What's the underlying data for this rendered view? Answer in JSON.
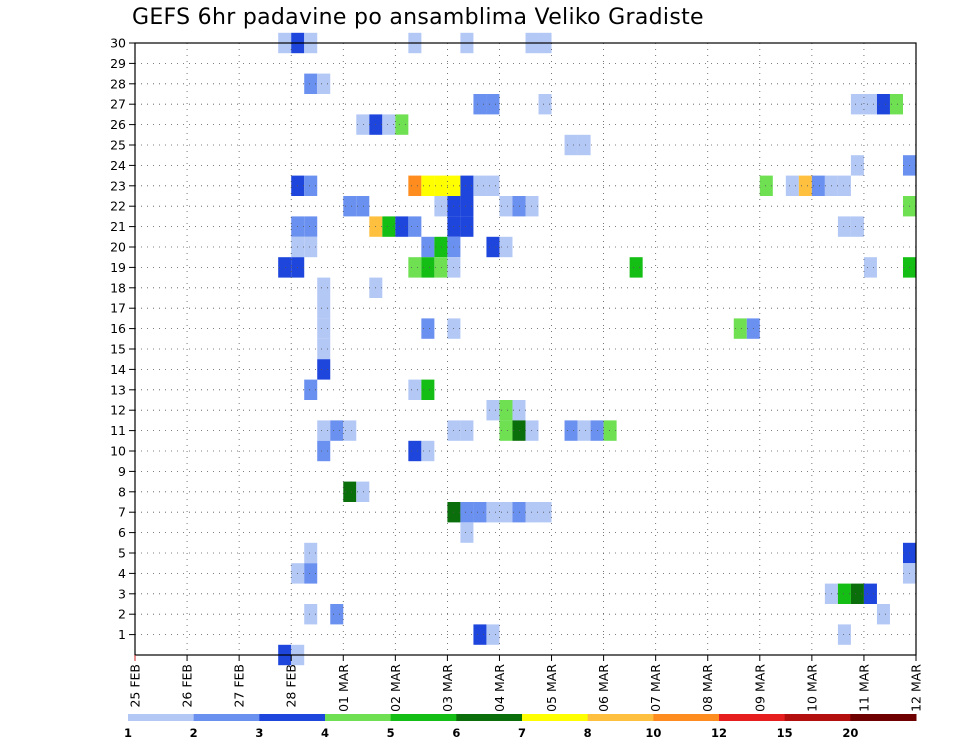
{
  "chart_data": {
    "type": "heatmap",
    "title": "GEFS 6hr padavine po ansamblima Veliko Gradiste",
    "x_tick_labels": [
      "25 FEB",
      "26 FEB",
      "27 FEB",
      "28 FEB",
      "01 MAR",
      "02 MAR",
      "03 MAR",
      "04 MAR",
      "05 MAR",
      "06 MAR",
      "07 MAR",
      "08 MAR",
      "09 MAR",
      "10 MAR",
      "11 MAR",
      "12 MAR"
    ],
    "x_range_days": [
      0,
      15
    ],
    "y_range_members": [
      0,
      30
    ],
    "y_tick_labels": [
      "1",
      "2",
      "3",
      "4",
      "5",
      "6",
      "7",
      "8",
      "9",
      "10",
      "11",
      "12",
      "13",
      "14",
      "15",
      "16",
      "17",
      "18",
      "19",
      "20",
      "21",
      "22",
      "23",
      "24",
      "25",
      "26",
      "27",
      "28",
      "29",
      "30"
    ],
    "grid": "dotted",
    "legend": {
      "placement": "bottom",
      "labels": [
        "1",
        "2",
        "3",
        "4",
        "5",
        "6",
        "7",
        "8",
        "10",
        "12",
        "15",
        "20"
      ],
      "colors": [
        "#b4c8f6",
        "#6a90f0",
        "#1e46dc",
        "#6ee052",
        "#14be14",
        "#0a6e0a",
        "#ffff00",
        "#ffc040",
        "#ff8c1e",
        "#e61e1e",
        "#b40f0f",
        "#6e0000"
      ]
    },
    "cells": [
      {
        "d": 2.75,
        "m": 30,
        "v": 1
      },
      {
        "d": 3.0,
        "m": 30,
        "v": 3
      },
      {
        "d": 3.25,
        "m": 30,
        "v": 1
      },
      {
        "d": 5.25,
        "m": 30,
        "v": 1
      },
      {
        "d": 6.25,
        "m": 30,
        "v": 1
      },
      {
        "d": 7.5,
        "m": 30,
        "v": 1
      },
      {
        "d": 7.75,
        "m": 30,
        "v": 1
      },
      {
        "d": 3.25,
        "m": 28,
        "v": 2
      },
      {
        "d": 3.5,
        "m": 28,
        "v": 1
      },
      {
        "d": 6.5,
        "m": 27,
        "v": 2
      },
      {
        "d": 6.75,
        "m": 27,
        "v": 2
      },
      {
        "d": 7.75,
        "m": 27,
        "v": 1
      },
      {
        "d": 13.75,
        "m": 27,
        "v": 1
      },
      {
        "d": 14.0,
        "m": 27,
        "v": 1
      },
      {
        "d": 14.25,
        "m": 27,
        "v": 3
      },
      {
        "d": 14.5,
        "m": 27,
        "v": 4
      },
      {
        "d": 4.25,
        "m": 26,
        "v": 1
      },
      {
        "d": 4.5,
        "m": 26,
        "v": 3
      },
      {
        "d": 4.75,
        "m": 26,
        "v": 1
      },
      {
        "d": 5.0,
        "m": 26,
        "v": 4
      },
      {
        "d": 8.25,
        "m": 25,
        "v": 1
      },
      {
        "d": 8.5,
        "m": 25,
        "v": 1
      },
      {
        "d": 13.75,
        "m": 24,
        "v": 1
      },
      {
        "d": 14.75,
        "m": 24,
        "v": 2
      },
      {
        "d": 3.0,
        "m": 23,
        "v": 3
      },
      {
        "d": 3.25,
        "m": 23,
        "v": 2
      },
      {
        "d": 5.25,
        "m": 23,
        "v": 9
      },
      {
        "d": 5.5,
        "m": 23,
        "v": 7
      },
      {
        "d": 5.75,
        "m": 23,
        "v": 7
      },
      {
        "d": 6.0,
        "m": 23,
        "v": 7
      },
      {
        "d": 6.25,
        "m": 23,
        "v": 3
      },
      {
        "d": 6.5,
        "m": 23,
        "v": 1
      },
      {
        "d": 6.75,
        "m": 23,
        "v": 1
      },
      {
        "d": 12.0,
        "m": 23,
        "v": 4
      },
      {
        "d": 12.5,
        "m": 23,
        "v": 1
      },
      {
        "d": 12.75,
        "m": 23,
        "v": 8
      },
      {
        "d": 13.0,
        "m": 23,
        "v": 2
      },
      {
        "d": 13.25,
        "m": 23,
        "v": 1
      },
      {
        "d": 13.5,
        "m": 23,
        "v": 1
      },
      {
        "d": 4.0,
        "m": 22,
        "v": 2
      },
      {
        "d": 4.25,
        "m": 22,
        "v": 2
      },
      {
        "d": 5.75,
        "m": 22,
        "v": 1
      },
      {
        "d": 6.0,
        "m": 22,
        "v": 3
      },
      {
        "d": 6.25,
        "m": 22,
        "v": 3
      },
      {
        "d": 7.0,
        "m": 22,
        "v": 1
      },
      {
        "d": 7.25,
        "m": 22,
        "v": 2
      },
      {
        "d": 7.5,
        "m": 22,
        "v": 1
      },
      {
        "d": 14.75,
        "m": 22,
        "v": 4
      },
      {
        "d": 3.0,
        "m": 21,
        "v": 2
      },
      {
        "d": 3.25,
        "m": 21,
        "v": 2
      },
      {
        "d": 4.5,
        "m": 21,
        "v": 8
      },
      {
        "d": 4.75,
        "m": 21,
        "v": 5
      },
      {
        "d": 5.0,
        "m": 21,
        "v": 3
      },
      {
        "d": 5.25,
        "m": 21,
        "v": 2
      },
      {
        "d": 6.0,
        "m": 21,
        "v": 3
      },
      {
        "d": 6.25,
        "m": 21,
        "v": 3
      },
      {
        "d": 13.5,
        "m": 21,
        "v": 1
      },
      {
        "d": 13.75,
        "m": 21,
        "v": 1
      },
      {
        "d": 3.0,
        "m": 20,
        "v": 1
      },
      {
        "d": 3.25,
        "m": 20,
        "v": 1
      },
      {
        "d": 5.5,
        "m": 20,
        "v": 2
      },
      {
        "d": 5.75,
        "m": 20,
        "v": 5
      },
      {
        "d": 6.0,
        "m": 20,
        "v": 2
      },
      {
        "d": 6.75,
        "m": 20,
        "v": 3
      },
      {
        "d": 7.0,
        "m": 20,
        "v": 1
      },
      {
        "d": 2.75,
        "m": 19,
        "v": 3
      },
      {
        "d": 3.0,
        "m": 19,
        "v": 3
      },
      {
        "d": 5.25,
        "m": 19,
        "v": 4
      },
      {
        "d": 5.5,
        "m": 19,
        "v": 5
      },
      {
        "d": 5.75,
        "m": 19,
        "v": 4
      },
      {
        "d": 6.0,
        "m": 19,
        "v": 1
      },
      {
        "d": 9.5,
        "m": 19,
        "v": 5
      },
      {
        "d": 14.0,
        "m": 19,
        "v": 1
      },
      {
        "d": 14.75,
        "m": 19,
        "v": 5
      },
      {
        "d": 3.5,
        "m": 18,
        "v": 1
      },
      {
        "d": 4.5,
        "m": 18,
        "v": 1
      },
      {
        "d": 3.5,
        "m": 17,
        "v": 1
      },
      {
        "d": 3.5,
        "m": 16,
        "v": 1
      },
      {
        "d": 5.5,
        "m": 16,
        "v": 2
      },
      {
        "d": 6.0,
        "m": 16,
        "v": 1
      },
      {
        "d": 11.5,
        "m": 16,
        "v": 4
      },
      {
        "d": 11.75,
        "m": 16,
        "v": 2
      },
      {
        "d": 3.5,
        "m": 15,
        "v": 1
      },
      {
        "d": 3.5,
        "m": 14,
        "v": 3
      },
      {
        "d": 3.25,
        "m": 13,
        "v": 2
      },
      {
        "d": 5.25,
        "m": 13,
        "v": 1
      },
      {
        "d": 5.5,
        "m": 13,
        "v": 5
      },
      {
        "d": 6.75,
        "m": 12,
        "v": 1
      },
      {
        "d": 7.0,
        "m": 12,
        "v": 4
      },
      {
        "d": 7.25,
        "m": 12,
        "v": 1
      },
      {
        "d": 3.5,
        "m": 11,
        "v": 1
      },
      {
        "d": 3.75,
        "m": 11,
        "v": 2
      },
      {
        "d": 4.0,
        "m": 11,
        "v": 1
      },
      {
        "d": 6.0,
        "m": 11,
        "v": 1
      },
      {
        "d": 6.25,
        "m": 11,
        "v": 1
      },
      {
        "d": 7.0,
        "m": 11,
        "v": 4
      },
      {
        "d": 7.25,
        "m": 11,
        "v": 6
      },
      {
        "d": 7.5,
        "m": 11,
        "v": 1
      },
      {
        "d": 8.25,
        "m": 11,
        "v": 2
      },
      {
        "d": 8.5,
        "m": 11,
        "v": 1
      },
      {
        "d": 8.75,
        "m": 11,
        "v": 2
      },
      {
        "d": 9.0,
        "m": 11,
        "v": 4
      },
      {
        "d": 3.5,
        "m": 10,
        "v": 2
      },
      {
        "d": 5.25,
        "m": 10,
        "v": 3
      },
      {
        "d": 5.5,
        "m": 10,
        "v": 1
      },
      {
        "d": 4.0,
        "m": 8,
        "v": 6
      },
      {
        "d": 4.25,
        "m": 8,
        "v": 1
      },
      {
        "d": 6.0,
        "m": 7,
        "v": 6
      },
      {
        "d": 6.25,
        "m": 7,
        "v": 2
      },
      {
        "d": 6.5,
        "m": 7,
        "v": 2
      },
      {
        "d": 6.75,
        "m": 7,
        "v": 1
      },
      {
        "d": 7.0,
        "m": 7,
        "v": 1
      },
      {
        "d": 7.25,
        "m": 7,
        "v": 2
      },
      {
        "d": 7.5,
        "m": 7,
        "v": 1
      },
      {
        "d": 7.75,
        "m": 7,
        "v": 1
      },
      {
        "d": 6.25,
        "m": 6,
        "v": 1
      },
      {
        "d": 15.0,
        "m": 6,
        "v": 3
      },
      {
        "d": 3.25,
        "m": 5,
        "v": 1
      },
      {
        "d": 14.75,
        "m": 5,
        "v": 3
      },
      {
        "d": 15.0,
        "m": 5,
        "v": 6
      },
      {
        "d": 3.0,
        "m": 4,
        "v": 1
      },
      {
        "d": 3.25,
        "m": 4,
        "v": 2
      },
      {
        "d": 14.75,
        "m": 4,
        "v": 1
      },
      {
        "d": 15.0,
        "m": 4,
        "v": 4
      },
      {
        "d": 13.25,
        "m": 3,
        "v": 1
      },
      {
        "d": 13.5,
        "m": 3,
        "v": 5
      },
      {
        "d": 13.75,
        "m": 3,
        "v": 6
      },
      {
        "d": 14.0,
        "m": 3,
        "v": 3
      },
      {
        "d": 3.25,
        "m": 2,
        "v": 1
      },
      {
        "d": 3.75,
        "m": 2,
        "v": 2
      },
      {
        "d": 14.25,
        "m": 2,
        "v": 1
      },
      {
        "d": 6.5,
        "m": 1,
        "v": 3
      },
      {
        "d": 6.75,
        "m": 1,
        "v": 1
      },
      {
        "d": 13.5,
        "m": 1,
        "v": 1
      },
      {
        "d": 2.75,
        "m": 0,
        "v": 3
      },
      {
        "d": 3.0,
        "m": 0,
        "v": 1
      }
    ]
  }
}
